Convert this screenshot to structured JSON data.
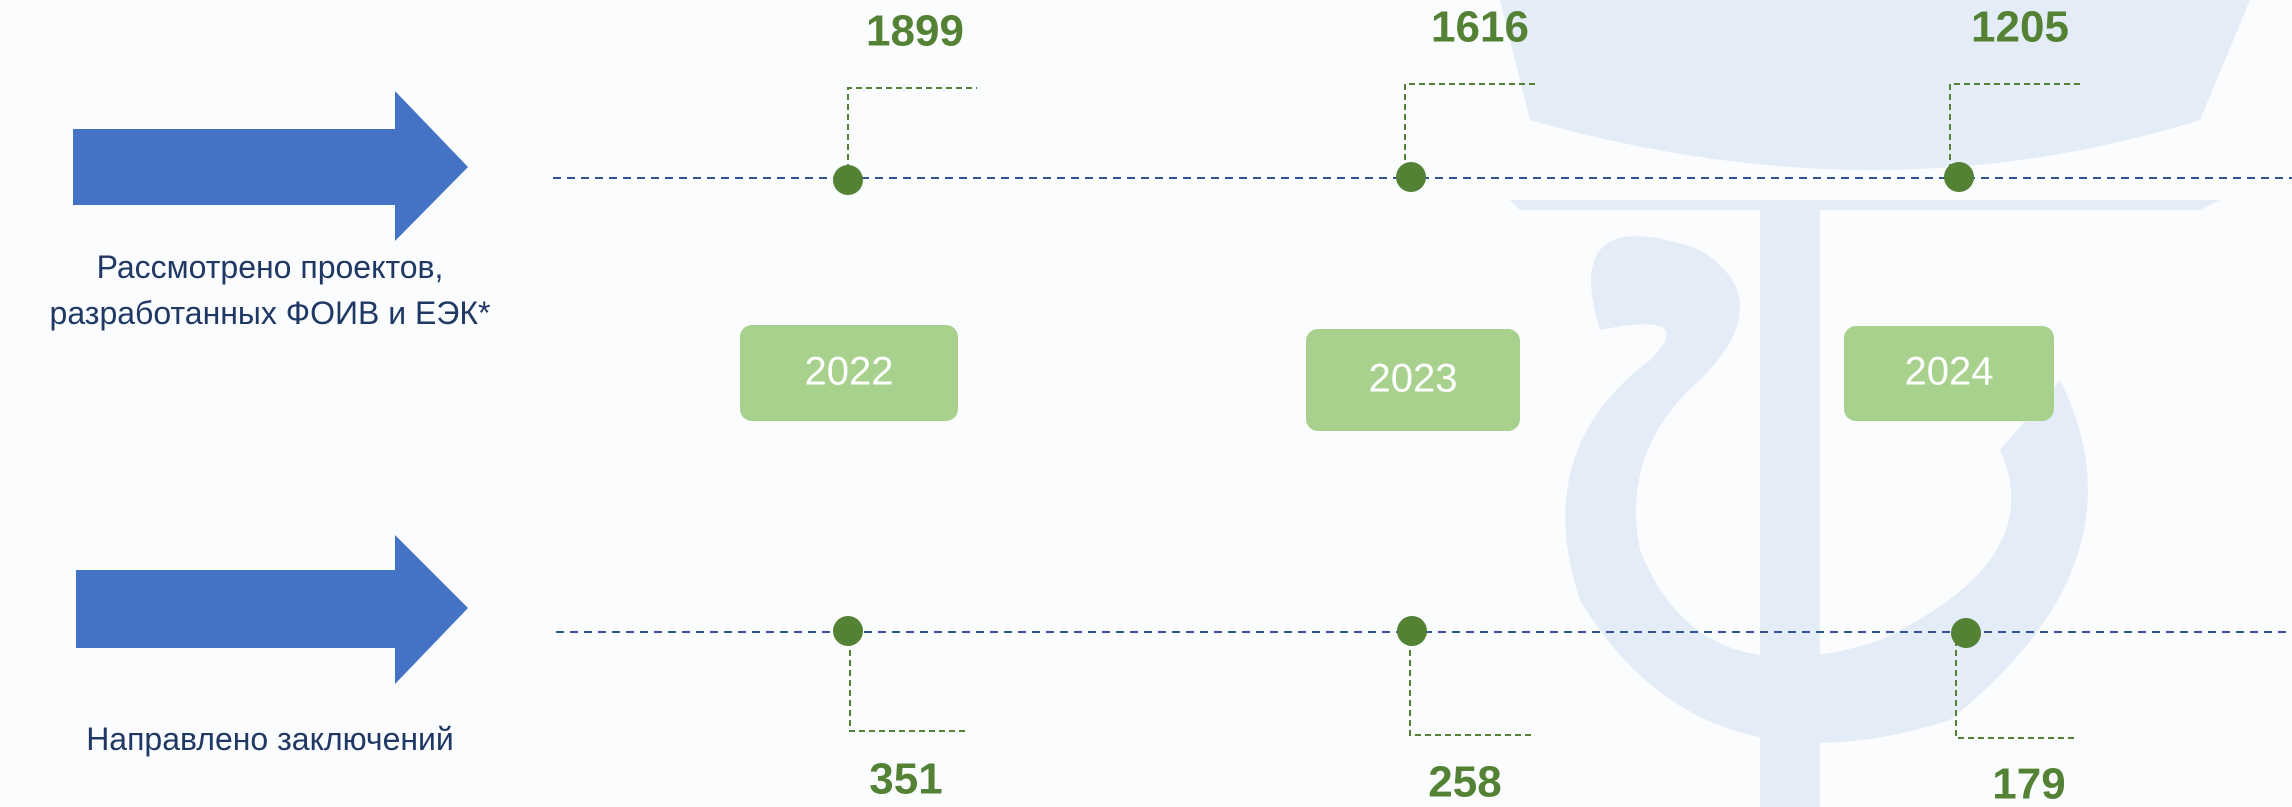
{
  "rows": [
    {
      "label": "Рассмотрено проектов, разработанных ФОИВ и ЕЭК*",
      "values": [
        "1899",
        "1616",
        "1205"
      ]
    },
    {
      "label": "Направлено заключений",
      "values": [
        "351",
        "258",
        "179"
      ]
    }
  ],
  "years": [
    "2022",
    "2023",
    "2024"
  ]
}
